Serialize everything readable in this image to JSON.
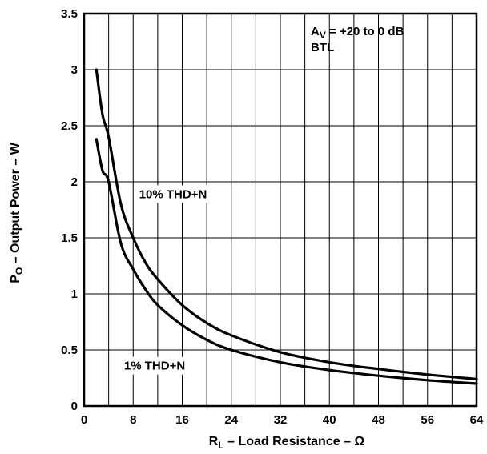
{
  "chart_data": {
    "type": "line",
    "title": "",
    "annotation_lines": [
      {
        "main": "A",
        "sub": "V",
        "rest": " = +20 to 0 dB"
      },
      {
        "main": "BTL",
        "sub": "",
        "rest": ""
      }
    ],
    "xlabel": {
      "main": "R",
      "sub": "L",
      "rest": " – Load Resistance – Ω"
    },
    "ylabel": {
      "main": "P",
      "sub": "O",
      "rest": " – Output Power – W"
    },
    "xlim": [
      0,
      64
    ],
    "ylim": [
      0,
      3.5
    ],
    "xticks": [
      {
        "value": 0,
        "label": "0"
      },
      {
        "value": 8,
        "label": "8"
      },
      {
        "value": 16,
        "label": "16"
      },
      {
        "value": 24,
        "label": "24"
      },
      {
        "value": 32,
        "label": "32"
      },
      {
        "value": 40,
        "label": "40"
      },
      {
        "value": 48,
        "label": "48"
      },
      {
        "value": 56,
        "label": "56"
      },
      {
        "value": 64,
        "label": "64"
      }
    ],
    "yticks": [
      {
        "value": 0,
        "label": "0"
      },
      {
        "value": 0.5,
        "label": "0.5"
      },
      {
        "value": 1,
        "label": "1"
      },
      {
        "value": 1.5,
        "label": "1.5"
      },
      {
        "value": 2,
        "label": "2"
      },
      {
        "value": 2.5,
        "label": "2.5"
      },
      {
        "value": 3,
        "label": "3"
      },
      {
        "value": 3.5,
        "label": "3.5"
      }
    ],
    "x_minor_step": 4,
    "y_minor_step": 0.5,
    "grid": true,
    "series": [
      {
        "name": "10% THD+N",
        "label_at": {
          "x": 14.5,
          "y": 1.89
        },
        "x": [
          2,
          3,
          4,
          6,
          8,
          10,
          12,
          16,
          20,
          24,
          32,
          40,
          48,
          56,
          64
        ],
        "y": [
          3.0,
          2.6,
          2.4,
          1.8,
          1.5,
          1.28,
          1.13,
          0.9,
          0.74,
          0.63,
          0.48,
          0.39,
          0.33,
          0.28,
          0.24
        ]
      },
      {
        "name": "1% THD+N",
        "label_at": {
          "x": 11.5,
          "y": 0.36
        },
        "x": [
          2,
          3,
          4,
          6,
          8,
          10,
          12,
          16,
          20,
          24,
          32,
          40,
          48,
          56,
          64
        ],
        "y": [
          2.38,
          2.1,
          2.0,
          1.45,
          1.22,
          1.04,
          0.9,
          0.72,
          0.59,
          0.5,
          0.39,
          0.32,
          0.27,
          0.23,
          0.2
        ]
      }
    ],
    "colors": {
      "line": "#000000",
      "grid": "#000000",
      "background": "#ffffff"
    }
  }
}
